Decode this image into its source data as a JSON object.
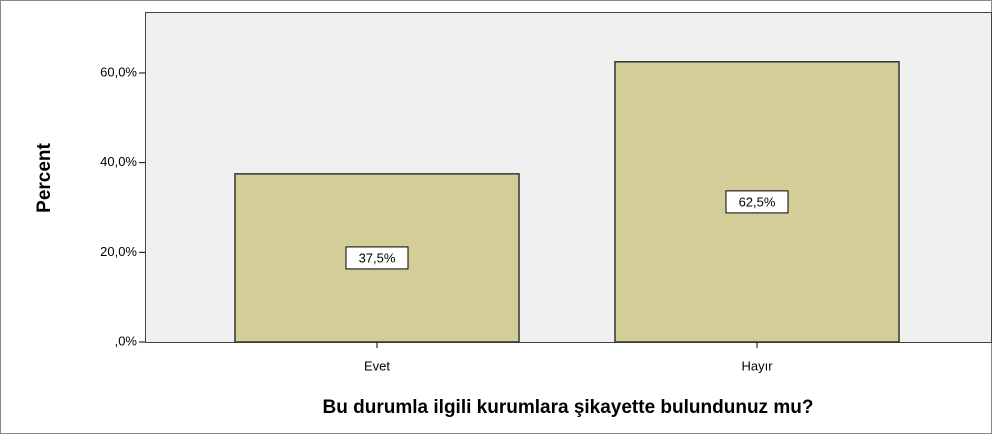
{
  "chart_data": {
    "type": "bar",
    "categories": [
      "Evet",
      "Hayır"
    ],
    "values": [
      37.5,
      62.5
    ],
    "value_labels": [
      "37,5%",
      "62,5%"
    ],
    "color": "#d3ce97",
    "ylabel": "Percent",
    "xlabel": "Bu durumla ilgili kurumlara şikayette bulundunuz mu?",
    "ylim": [
      0,
      73.6
    ],
    "yticks": [
      {
        "value": 0,
        "label": ",0%"
      },
      {
        "value": 20,
        "label": "20,0%"
      },
      {
        "value": 40,
        "label": "40,0%"
      },
      {
        "value": 60,
        "label": "60,0%"
      }
    ]
  }
}
